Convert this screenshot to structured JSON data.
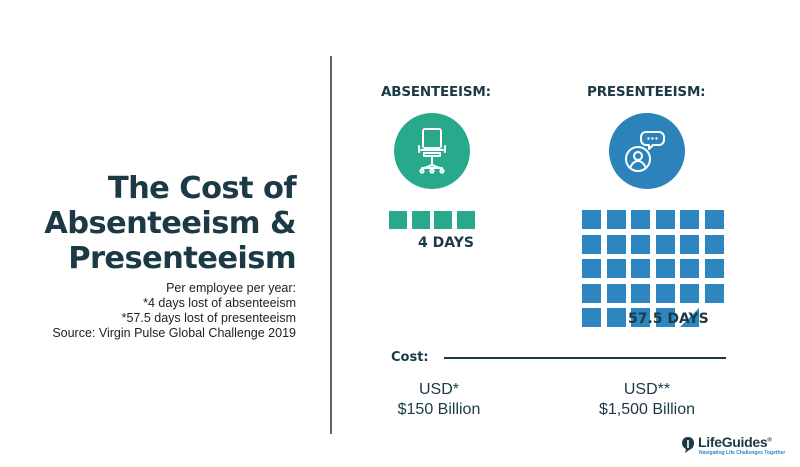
{
  "title_lines": [
    "The Cost of",
    "Absenteeism &",
    "Presenteeism"
  ],
  "notes": [
    "Per employee per year:",
    "*4 days lost of absenteeism",
    "*57.5 days lost of presenteeism",
    "Source: Virgin Pulse Global Challenge 2019"
  ],
  "absenteeism": {
    "heading": "ABSENTEEISM:",
    "icon": "office-chair-icon",
    "color": "#28a98b",
    "days_value": 4,
    "days_label": "4 DAYS",
    "cost_currency": "USD*",
    "cost_amount": "$150 Billion"
  },
  "presenteeism": {
    "heading": "PRESENTEEISM:",
    "icon": "person-speech-bubble-icon",
    "color": "#2c82bb",
    "days_value": 57.5,
    "days_label": "57.5 DAYS",
    "cost_currency": "USD**",
    "cost_amount": "$1,500 Billion"
  },
  "cost_label": "Cost:",
  "logo": {
    "name": "LifeGuides",
    "registered": "®",
    "tagline": "Navigating Life Challenges Together"
  }
}
